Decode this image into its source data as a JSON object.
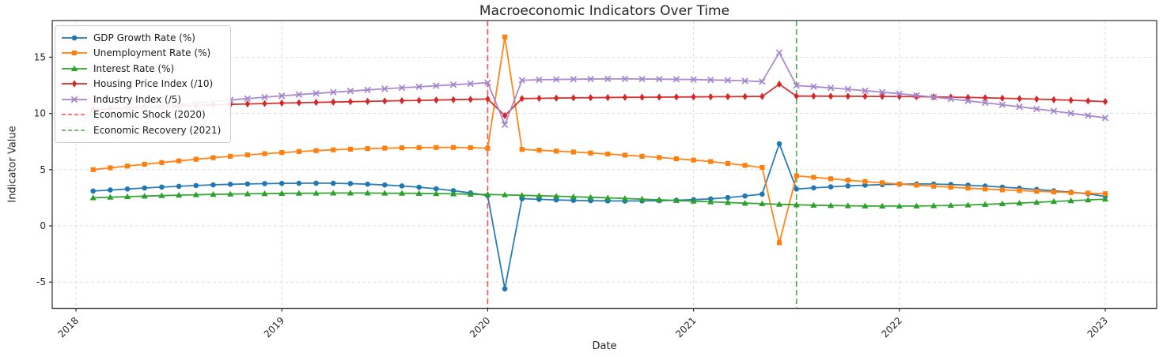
{
  "title": "Macroeconomic Indicators Over Time",
  "chart_data": {
    "type": "line",
    "title": "Macroeconomic Indicators Over Time",
    "xlabel": "Date",
    "ylabel": "Indicator Value",
    "grid": true,
    "legend_position": "upper left",
    "x_tick_labels": [
      "2018",
      "2019",
      "2020",
      "2021",
      "2022",
      "2023"
    ],
    "y_ticks": [
      -5,
      0,
      5,
      10,
      15
    ],
    "y_tick_labels": [
      "-5",
      "0",
      "5",
      "10",
      "15"
    ],
    "x": [
      "2018-01",
      "2018-02",
      "2018-03",
      "2018-04",
      "2018-05",
      "2018-06",
      "2018-07",
      "2018-08",
      "2018-09",
      "2018-10",
      "2018-11",
      "2018-12",
      "2019-01",
      "2019-02",
      "2019-03",
      "2019-04",
      "2019-05",
      "2019-06",
      "2019-07",
      "2019-08",
      "2019-09",
      "2019-10",
      "2019-11",
      "2019-12",
      "2020-01",
      "2020-02",
      "2020-03",
      "2020-04",
      "2020-05",
      "2020-06",
      "2020-07",
      "2020-08",
      "2020-09",
      "2020-10",
      "2020-11",
      "2020-12",
      "2021-01",
      "2021-02",
      "2021-03",
      "2021-04",
      "2021-05",
      "2021-06",
      "2021-07",
      "2021-08",
      "2021-09",
      "2021-10",
      "2021-11",
      "2021-12",
      "2022-01",
      "2022-02",
      "2022-03",
      "2022-04",
      "2022-05",
      "2022-06",
      "2022-07",
      "2022-08",
      "2022-09",
      "2022-10",
      "2022-11",
      "2022-12"
    ],
    "series": [
      {
        "name": "GDP Growth Rate (%)",
        "color": "#1f77b4",
        "marker": "circle",
        "values": [
          3.1,
          3.19,
          3.28,
          3.37,
          3.45,
          3.52,
          3.59,
          3.65,
          3.7,
          3.73,
          3.76,
          3.78,
          3.79,
          3.8,
          3.79,
          3.76,
          3.71,
          3.64,
          3.55,
          3.44,
          3.3,
          3.13,
          2.93,
          2.7,
          -5.6,
          2.42,
          2.36,
          2.31,
          2.27,
          2.24,
          2.22,
          2.21,
          2.22,
          2.24,
          2.28,
          2.33,
          2.4,
          2.52,
          2.66,
          2.82,
          7.3,
          3.28,
          3.38,
          3.47,
          3.55,
          3.62,
          3.67,
          3.71,
          3.73,
          3.72,
          3.68,
          3.62,
          3.54,
          3.45,
          3.35,
          3.24,
          3.12,
          3.0,
          2.85,
          2.62
        ]
      },
      {
        "name": "Unemployment Rate (%)",
        "color": "#ff7f0e",
        "marker": "square",
        "values": [
          5.0,
          5.16,
          5.32,
          5.48,
          5.63,
          5.78,
          5.92,
          6.06,
          6.19,
          6.31,
          6.42,
          6.52,
          6.61,
          6.69,
          6.76,
          6.82,
          6.87,
          6.91,
          6.94,
          6.96,
          6.97,
          6.97,
          6.95,
          6.9,
          16.8,
          6.8,
          6.73,
          6.65,
          6.57,
          6.48,
          6.39,
          6.29,
          6.19,
          6.08,
          5.97,
          5.85,
          5.72,
          5.55,
          5.38,
          5.19,
          -1.5,
          4.45,
          4.32,
          4.19,
          4.06,
          3.94,
          3.83,
          3.72,
          3.62,
          3.53,
          3.44,
          3.36,
          3.28,
          3.21,
          3.14,
          3.08,
          3.02,
          2.96,
          2.91,
          2.86
        ]
      },
      {
        "name": "Interest Rate (%)",
        "color": "#2ca02c",
        "marker": "triangle",
        "values": [
          2.5,
          2.55,
          2.6,
          2.65,
          2.69,
          2.73,
          2.77,
          2.8,
          2.83,
          2.85,
          2.87,
          2.89,
          2.9,
          2.91,
          2.92,
          2.92,
          2.92,
          2.91,
          2.9,
          2.89,
          2.87,
          2.85,
          2.82,
          2.79,
          2.76,
          2.72,
          2.68,
          2.64,
          2.59,
          2.54,
          2.49,
          2.44,
          2.38,
          2.32,
          2.26,
          2.2,
          2.14,
          2.08,
          2.02,
          1.97,
          1.92,
          1.88,
          1.84,
          1.81,
          1.79,
          1.77,
          1.76,
          1.76,
          1.77,
          1.79,
          1.82,
          1.86,
          1.91,
          1.97,
          2.03,
          2.1,
          2.17,
          2.24,
          2.31,
          2.38
        ]
      },
      {
        "name": "Housing Price Index (/10)",
        "color": "#d62728",
        "marker": "diamond",
        "values": [
          10.35,
          10.42,
          10.49,
          10.55,
          10.61,
          10.66,
          10.71,
          10.76,
          10.8,
          10.84,
          10.88,
          10.92,
          10.95,
          10.98,
          11.01,
          11.04,
          11.07,
          11.1,
          11.13,
          11.16,
          11.19,
          11.22,
          11.25,
          11.28,
          9.8,
          11.32,
          11.34,
          11.36,
          11.38,
          11.4,
          11.41,
          11.43,
          11.44,
          11.45,
          11.46,
          11.47,
          11.48,
          11.49,
          11.5,
          11.51,
          12.6,
          11.54,
          11.54,
          11.53,
          11.53,
          11.52,
          11.51,
          11.5,
          11.49,
          11.47,
          11.45,
          11.42,
          11.39,
          11.35,
          11.31,
          11.27,
          11.22,
          11.17,
          11.11,
          11.05
        ]
      },
      {
        "name": "Industry Index (/5)",
        "color": "#a485cc",
        "marker": "x",
        "values": [
          10.0,
          10.16,
          10.32,
          10.48,
          10.63,
          10.78,
          10.92,
          11.06,
          11.19,
          11.32,
          11.44,
          11.56,
          11.67,
          11.78,
          11.89,
          11.99,
          12.09,
          12.19,
          12.28,
          12.37,
          12.46,
          12.55,
          12.64,
          12.73,
          9.0,
          12.95,
          12.99,
          13.02,
          13.04,
          13.06,
          13.07,
          13.07,
          13.06,
          13.05,
          13.03,
          13.01,
          12.98,
          12.94,
          12.89,
          12.83,
          15.4,
          12.48,
          12.38,
          12.27,
          12.15,
          12.02,
          11.89,
          11.75,
          11.6,
          11.45,
          11.29,
          11.12,
          10.95,
          10.77,
          10.59,
          10.4,
          10.21,
          10.01,
          9.81,
          9.6
        ]
      }
    ],
    "annotations": [
      {
        "label": "Economic Shock (2020)",
        "x_year": 2020.0,
        "color": "#ff4d4d",
        "style": "dashed"
      },
      {
        "label": "Economic Recovery (2021)",
        "x_year": 2021.5,
        "color": "#4da64d",
        "style": "dashed"
      }
    ]
  }
}
